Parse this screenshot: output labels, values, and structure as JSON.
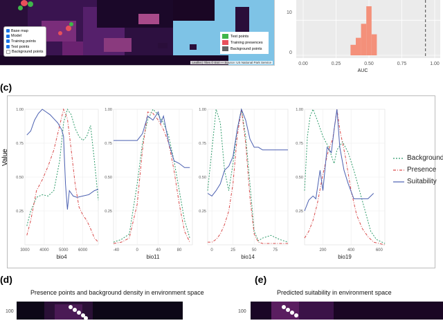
{
  "map": {
    "layers": [
      "Base map",
      "Model",
      "Training points",
      "Test points",
      "Background points"
    ],
    "legend": [
      {
        "label": "Test points",
        "color": "#3fb64a"
      },
      {
        "label": "Training presences",
        "color": "#e8505b"
      },
      {
        "label": "Background points",
        "color": "#666666"
      }
    ],
    "attribution": "Leaflet | Tiles © Esri — Source: US National Park Service"
  },
  "auc_panel": {
    "xlabel": "AUC",
    "xticks": [
      "0.00",
      "0.25",
      "0.50",
      "0.75",
      "1.00"
    ],
    "yticks": [
      "10",
      "0"
    ],
    "bar_color": "#f4907a",
    "dashed_color": "#444444"
  },
  "panel_labels": {
    "c": "(c)",
    "d": "(d)",
    "e": "(e)"
  },
  "panel_c": {
    "ylabel": "Value",
    "legend": [
      {
        "label": "Background",
        "color": "#2e9b6a",
        "dash": "dashed"
      },
      {
        "label": "Presence",
        "color": "#d94b4b",
        "dash": "dashdot"
      },
      {
        "label": "Suitability",
        "color": "#4a5fb0",
        "dash": "solid"
      }
    ]
  },
  "panel_d": {
    "title": "Presence points and background density in environment space",
    "ytick": "100"
  },
  "panel_e": {
    "title": "Predicted suitability in environment space",
    "ytick": "100"
  },
  "chart_data": [
    {
      "type": "bar",
      "title": "",
      "xlabel": "AUC",
      "ylabel": "",
      "xlim": [
        0.0,
        1.0
      ],
      "categories": [
        "0.36",
        "0.40",
        "0.44",
        "0.48",
        "0.52"
      ],
      "values": [
        3,
        5,
        9,
        14,
        6
      ],
      "reference_line": 0.93
    },
    {
      "type": "line",
      "xlabel": "bio4",
      "xlim": [
        3000,
        6800
      ],
      "ylim": [
        0,
        1
      ],
      "xticks": [
        3000,
        4000,
        5000,
        6000
      ],
      "yticks": [
        0.25,
        0.5,
        0.75,
        1.0
      ],
      "series": [
        {
          "name": "Background",
          "x": [
            3100,
            3300,
            3600,
            3900,
            4200,
            4500,
            4800,
            5000,
            5200,
            5400,
            5600,
            5800,
            6000,
            6200,
            6400,
            6600,
            6800
          ],
          "y": [
            0.14,
            0.25,
            0.35,
            0.37,
            0.36,
            0.4,
            0.62,
            0.9,
            1.0,
            0.96,
            0.86,
            0.8,
            0.77,
            0.8,
            0.88,
            0.62,
            0.33
          ]
        },
        {
          "name": "Presence",
          "x": [
            3100,
            3300,
            3600,
            3900,
            4200,
            4500,
            4800,
            5000,
            5200,
            5400,
            5600,
            5800,
            6000,
            6200,
            6400,
            6600,
            6800
          ],
          "y": [
            0.07,
            0.18,
            0.4,
            0.48,
            0.58,
            0.7,
            0.88,
            1.0,
            0.93,
            0.7,
            0.45,
            0.28,
            0.22,
            0.18,
            0.12,
            0.05,
            0.02
          ]
        },
        {
          "name": "Suitability",
          "x": [
            3100,
            3300,
            3500,
            3700,
            3900,
            4100,
            4300,
            4500,
            4700,
            4900,
            5000,
            5100,
            5200,
            5300,
            5500,
            5700,
            6000,
            6300,
            6600,
            6800
          ],
          "y": [
            0.81,
            0.84,
            0.92,
            0.97,
            1.0,
            0.98,
            0.96,
            0.93,
            0.9,
            0.85,
            0.8,
            0.45,
            0.26,
            0.4,
            0.36,
            0.35,
            0.36,
            0.37,
            0.4,
            0.41
          ]
        }
      ]
    },
    {
      "type": "line",
      "xlabel": "bio11",
      "xlim": [
        -45,
        105
      ],
      "ylim": [
        0,
        1
      ],
      "xticks": [
        -40,
        0,
        40,
        80
      ],
      "yticks": [
        0.25,
        0.5,
        0.75,
        1.0
      ],
      "series": [
        {
          "name": "Background",
          "x": [
            -45,
            -30,
            -15,
            0,
            10,
            20,
            30,
            40,
            50,
            60,
            70,
            80,
            90,
            100
          ],
          "y": [
            0.02,
            0.04,
            0.08,
            0.45,
            0.75,
            0.92,
            1.0,
            0.96,
            0.9,
            0.8,
            0.62,
            0.4,
            0.18,
            0.05
          ]
        },
        {
          "name": "Presence",
          "x": [
            -45,
            -30,
            -15,
            0,
            10,
            20,
            30,
            40,
            50,
            60,
            70,
            80,
            90,
            100
          ],
          "y": [
            0.01,
            0.02,
            0.05,
            0.3,
            0.7,
            0.98,
            0.97,
            0.92,
            0.85,
            0.75,
            0.55,
            0.3,
            0.1,
            0.02
          ]
        },
        {
          "name": "Suitability",
          "x": [
            -45,
            -20,
            0,
            10,
            20,
            30,
            40,
            45,
            50,
            55,
            60,
            70,
            80,
            90,
            100
          ],
          "y": [
            0.77,
            0.77,
            0.77,
            0.82,
            0.95,
            0.92,
            0.98,
            0.9,
            0.95,
            0.85,
            0.75,
            0.62,
            0.6,
            0.57,
            0.57
          ]
        }
      ]
    },
    {
      "type": "line",
      "xlabel": "bio14",
      "xlim": [
        -5,
        90
      ],
      "ylim": [
        0,
        1
      ],
      "xticks": [
        0,
        25,
        50,
        75
      ],
      "yticks": [
        0.25,
        0.5,
        0.75,
        1.0
      ],
      "series": [
        {
          "name": "Background",
          "x": [
            -5,
            0,
            5,
            10,
            15,
            20,
            25,
            30,
            35,
            40,
            45,
            50,
            55,
            60,
            70,
            80,
            90
          ],
          "y": [
            0.4,
            0.7,
            1.0,
            0.9,
            0.55,
            0.4,
            0.6,
            0.85,
            1.0,
            0.8,
            0.45,
            0.1,
            0.03,
            0.05,
            0.07,
            0.04,
            0.02
          ]
        },
        {
          "name": "Presence",
          "x": [
            -5,
            0,
            5,
            10,
            15,
            20,
            25,
            30,
            35,
            40,
            45,
            50,
            55,
            60,
            70,
            80,
            90
          ],
          "y": [
            0.02,
            0.02,
            0.04,
            0.08,
            0.15,
            0.25,
            0.45,
            0.8,
            1.0,
            0.75,
            0.35,
            0.08,
            0.02,
            0.01,
            0.01,
            0.01,
            0.01
          ]
        },
        {
          "name": "Suitability",
          "x": [
            -5,
            0,
            5,
            10,
            15,
            20,
            25,
            30,
            35,
            40,
            45,
            50,
            55,
            60,
            70,
            80,
            90
          ],
          "y": [
            0.38,
            0.36,
            0.4,
            0.45,
            0.55,
            0.58,
            0.65,
            0.85,
            1.0,
            0.92,
            0.78,
            0.72,
            0.72,
            0.7,
            0.7,
            0.7,
            0.7
          ]
        }
      ]
    },
    {
      "type": "line",
      "xlabel": "bio19",
      "xlim": [
        70,
        640
      ],
      "ylim": [
        0,
        1
      ],
      "xticks": [
        200,
        400,
        600
      ],
      "yticks": [
        0.25,
        0.5,
        0.75,
        1.0
      ],
      "series": [
        {
          "name": "Background",
          "x": [
            70,
            90,
            110,
            130,
            160,
            200,
            240,
            280,
            300,
            340,
            380,
            420,
            460,
            500,
            540,
            580,
            620,
            640
          ],
          "y": [
            0.4,
            0.8,
            0.95,
            1.0,
            0.92,
            0.8,
            0.72,
            0.6,
            0.7,
            0.76,
            0.68,
            0.55,
            0.4,
            0.25,
            0.1,
            0.04,
            0.02,
            0.01
          ]
        },
        {
          "name": "Presence",
          "x": [
            70,
            100,
            130,
            160,
            200,
            240,
            270,
            300,
            320,
            360,
            400,
            440,
            480,
            520,
            560,
            600,
            640
          ],
          "y": [
            0.05,
            0.1,
            0.18,
            0.3,
            0.52,
            0.7,
            0.78,
            1.0,
            0.85,
            0.65,
            0.4,
            0.22,
            0.12,
            0.06,
            0.02,
            0.01,
            0.0
          ]
        },
        {
          "name": "Suitability",
          "x": [
            70,
            100,
            130,
            150,
            180,
            200,
            230,
            260,
            280,
            300,
            320,
            350,
            380,
            420,
            480,
            520,
            560
          ],
          "y": [
            0.25,
            0.33,
            0.36,
            0.34,
            0.55,
            0.4,
            0.72,
            0.68,
            0.85,
            1.0,
            0.72,
            0.55,
            0.45,
            0.34,
            0.34,
            0.34,
            0.38
          ]
        }
      ]
    }
  ]
}
